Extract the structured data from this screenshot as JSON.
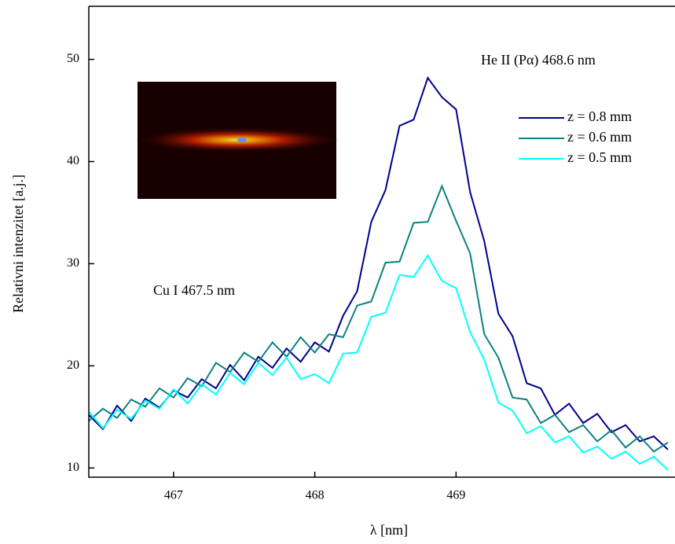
{
  "chart_data": {
    "type": "line",
    "xlabel": "λ [nm]",
    "ylabel": "Relativni intenzitet [a.j.]",
    "annotations": [
      "He II (Pα) 468.6 nm",
      "Cu I 467.5 nm"
    ],
    "x": [
      466.4,
      466.5,
      466.6,
      466.7,
      466.8,
      466.9,
      467.0,
      467.1,
      467.2,
      467.3,
      467.4,
      467.5,
      467.6,
      467.7,
      467.8,
      467.9,
      468.0,
      468.1,
      468.2,
      468.3,
      468.4,
      468.5,
      468.6,
      468.7,
      468.8,
      468.9,
      469.0,
      469.1,
      469.2,
      469.3,
      469.4,
      469.5,
      469.6,
      469.7,
      469.8,
      469.9,
      470.0,
      470.1,
      470.2,
      470.3,
      470.4,
      470.5
    ],
    "series": [
      {
        "name": "z = 0.8 mm",
        "color": "#00008b",
        "values": [
          15.2,
          13.8,
          16.1,
          14.6,
          16.8,
          15.9,
          17.6,
          16.9,
          18.7,
          17.8,
          20.1,
          18.6,
          20.9,
          19.8,
          21.7,
          20.4,
          22.3,
          21.4,
          24.9,
          27.3,
          34.1,
          37.2,
          43.5,
          44.1,
          48.2,
          46.3,
          45.1,
          37.0,
          32.2,
          25.1,
          22.9,
          18.3,
          17.8,
          15.2,
          16.3,
          14.4,
          15.3,
          13.5,
          14.2,
          12.6,
          13.1,
          11.8
        ]
      },
      {
        "name": "z = 0.6 mm",
        "color": "#0e8080",
        "values": [
          14.6,
          15.8,
          14.9,
          16.7,
          16.0,
          17.8,
          16.9,
          18.8,
          18.0,
          20.3,
          19.4,
          21.3,
          20.4,
          22.3,
          20.9,
          22.8,
          21.3,
          23.1,
          22.8,
          25.9,
          26.3,
          30.1,
          30.2,
          34.0,
          34.1,
          37.6,
          34.2,
          31.0,
          23.1,
          20.8,
          16.9,
          16.7,
          14.4,
          15.2,
          13.5,
          14.2,
          12.6,
          13.7,
          12.0,
          13.1,
          11.6,
          12.5
        ]
      },
      {
        "name": "z = 0.5 mm",
        "color": "#00ffff",
        "values": [
          15.5,
          13.9,
          15.7,
          14.8,
          16.6,
          15.8,
          17.7,
          16.3,
          18.2,
          17.2,
          19.3,
          18.2,
          20.3,
          19.1,
          20.8,
          18.7,
          19.2,
          18.3,
          21.2,
          21.3,
          24.8,
          25.2,
          28.9,
          28.7,
          30.8,
          28.3,
          27.6,
          23.3,
          20.6,
          16.4,
          15.6,
          13.4,
          14.1,
          12.5,
          13.1,
          11.5,
          12.1,
          10.9,
          11.6,
          10.4,
          11.1,
          9.8
        ]
      }
    ],
    "xlim": [
      466.4,
      470.55
    ],
    "xticks": [
      467,
      468,
      469
    ],
    "ylim": [
      9.1,
      55.2
    ],
    "yticks": [
      10,
      20,
      30,
      40,
      50
    ],
    "legend": "upper right",
    "grid": false
  }
}
